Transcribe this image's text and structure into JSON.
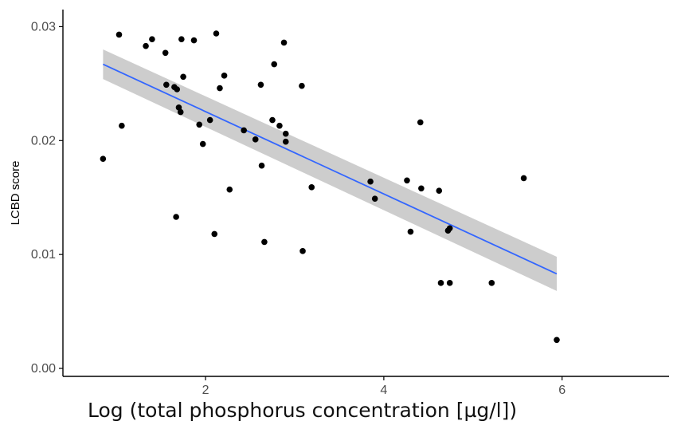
{
  "chart_data": {
    "type": "scatter",
    "title": "",
    "xlabel": "Log (total phosphorus concentration [µg/l])",
    "ylabel": "LCBD score",
    "xlim": [
      0.4,
      7.2
    ],
    "ylim": [
      -0.0007,
      0.0315
    ],
    "x_ticks": [
      2,
      4,
      6
    ],
    "x_tick_labels": [
      "2",
      "4",
      "6"
    ],
    "y_ticks": [
      0.0,
      0.01,
      0.02,
      0.03
    ],
    "y_tick_labels": [
      "0.00",
      "0.01",
      "0.02",
      "0.03"
    ],
    "grid": false,
    "legend": "none",
    "points": [
      {
        "x": 0.85,
        "y": 0.0184
      },
      {
        "x": 1.03,
        "y": 0.0293
      },
      {
        "x": 1.06,
        "y": 0.0213
      },
      {
        "x": 1.33,
        "y": 0.0283
      },
      {
        "x": 1.4,
        "y": 0.0289
      },
      {
        "x": 1.55,
        "y": 0.0277
      },
      {
        "x": 1.56,
        "y": 0.0249
      },
      {
        "x": 1.65,
        "y": 0.0247
      },
      {
        "x": 1.68,
        "y": 0.0245
      },
      {
        "x": 1.7,
        "y": 0.0229
      },
      {
        "x": 1.72,
        "y": 0.0225
      },
      {
        "x": 1.73,
        "y": 0.0289
      },
      {
        "x": 1.75,
        "y": 0.0256
      },
      {
        "x": 1.67,
        "y": 0.0133
      },
      {
        "x": 1.87,
        "y": 0.0288
      },
      {
        "x": 1.93,
        "y": 0.0214
      },
      {
        "x": 1.97,
        "y": 0.0197
      },
      {
        "x": 2.05,
        "y": 0.0218
      },
      {
        "x": 2.1,
        "y": 0.0118
      },
      {
        "x": 2.12,
        "y": 0.0294
      },
      {
        "x": 2.16,
        "y": 0.0246
      },
      {
        "x": 2.21,
        "y": 0.0257
      },
      {
        "x": 2.27,
        "y": 0.0157
      },
      {
        "x": 2.43,
        "y": 0.0209
      },
      {
        "x": 2.56,
        "y": 0.0201
      },
      {
        "x": 2.62,
        "y": 0.0249
      },
      {
        "x": 2.63,
        "y": 0.0178
      },
      {
        "x": 2.66,
        "y": 0.0111
      },
      {
        "x": 2.75,
        "y": 0.0218
      },
      {
        "x": 2.77,
        "y": 0.0267
      },
      {
        "x": 2.83,
        "y": 0.0213
      },
      {
        "x": 2.88,
        "y": 0.0286
      },
      {
        "x": 2.9,
        "y": 0.0206
      },
      {
        "x": 2.9,
        "y": 0.0199
      },
      {
        "x": 3.08,
        "y": 0.0248
      },
      {
        "x": 3.09,
        "y": 0.0103
      },
      {
        "x": 3.19,
        "y": 0.0159
      },
      {
        "x": 3.85,
        "y": 0.0164
      },
      {
        "x": 3.9,
        "y": 0.0149
      },
      {
        "x": 4.26,
        "y": 0.0165
      },
      {
        "x": 4.3,
        "y": 0.012
      },
      {
        "x": 4.41,
        "y": 0.0216
      },
      {
        "x": 4.42,
        "y": 0.0158
      },
      {
        "x": 4.62,
        "y": 0.0156
      },
      {
        "x": 4.64,
        "y": 0.0075
      },
      {
        "x": 4.72,
        "y": 0.0121
      },
      {
        "x": 4.74,
        "y": 0.0123
      },
      {
        "x": 4.74,
        "y": 0.0075
      },
      {
        "x": 5.21,
        "y": 0.0075
      },
      {
        "x": 5.57,
        "y": 0.0167
      },
      {
        "x": 5.94,
        "y": 0.0025
      }
    ],
    "fit_line": {
      "type": "linear",
      "x": [
        0.85,
        5.94
      ],
      "y": [
        0.0267,
        0.0083
      ],
      "ci_lower": [
        0.0254,
        0.0068
      ],
      "ci_upper": [
        0.028,
        0.0098
      ]
    },
    "colors": {
      "points": "#000000",
      "fit_line": "#3366ff",
      "confidence_band": "#c8c8c8",
      "axis": "#000000",
      "tick_label": "#4d4d4d"
    }
  }
}
